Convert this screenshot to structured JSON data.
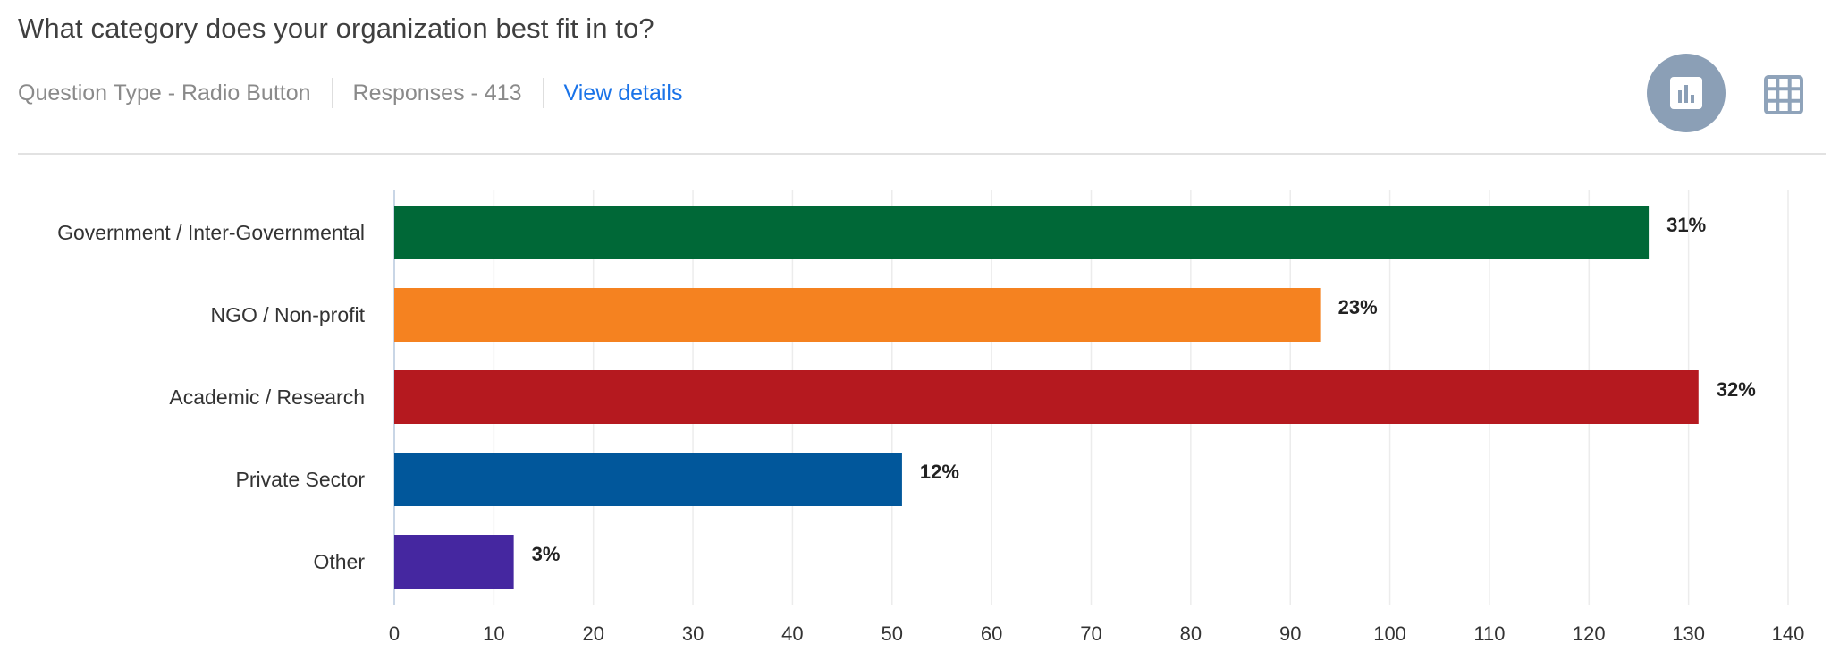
{
  "question": {
    "title": "What category does your organization best fit in to?",
    "type_text": "Question Type - Radio Button",
    "responses_text": "Responses - 413",
    "view_details": "View details"
  },
  "toolbar": {
    "chart_icon": "bar-chart-icon",
    "table_icon": "grid-table-icon"
  },
  "colors": {
    "accent_link": "#1a73e8",
    "toggle_active": "#8b9fb6",
    "toggle_inactive": "#8fa3ba"
  },
  "chart_data": {
    "type": "bar",
    "orientation": "horizontal",
    "title": "What category does your organization best fit in to?",
    "xlabel": "",
    "ylabel": "",
    "categories": [
      "Government / Inter-Governmental",
      "NGO / Non-profit",
      "Academic / Research",
      "Private Sector",
      "Other"
    ],
    "values": [
      126,
      93,
      131,
      51,
      12
    ],
    "value_labels": [
      "31%",
      "23%",
      "32%",
      "12%",
      "3%"
    ],
    "colors": [
      "#006837",
      "#f58220",
      "#b5191f",
      "#01579b",
      "#4527a0"
    ],
    "xlim": [
      0,
      140
    ],
    "xticks": [
      0,
      10,
      20,
      30,
      40,
      50,
      60,
      70,
      80,
      90,
      100,
      110,
      120,
      130,
      140
    ],
    "grid": true,
    "legend": "none"
  }
}
